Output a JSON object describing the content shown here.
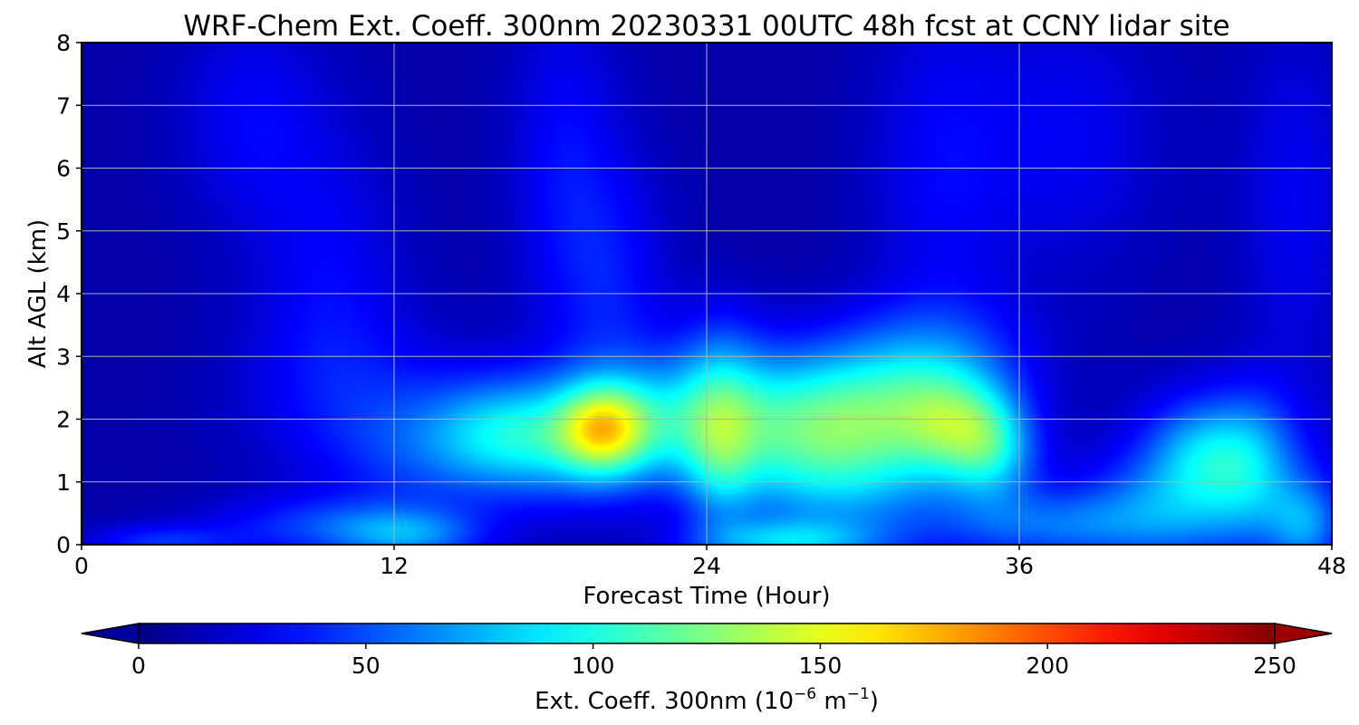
{
  "chart_data": {
    "type": "heatmap",
    "title": "WRF-Chem Ext. Coeff. 300nm  20230331 00UTC 48h fcst at CCNY lidar site",
    "xlabel": "Forecast Time (Hour)",
    "ylabel": "Alt AGL (km)",
    "xlim": [
      0,
      48
    ],
    "ylim": [
      0,
      8
    ],
    "x_ticks": [
      "0",
      "12",
      "24",
      "36",
      "48"
    ],
    "y_ticks": [
      "0",
      "1",
      "2",
      "3",
      "4",
      "5",
      "6",
      "7",
      "8"
    ],
    "grid": true,
    "colormap": "jet",
    "colorbar": {
      "orientation": "horizontal",
      "position": "bottom",
      "range": [
        0,
        250
      ],
      "extend": "both",
      "ticks": [
        "0",
        "50",
        "100",
        "150",
        "200",
        "250"
      ],
      "label_main": "Ext. Coeff. 300nm  (10",
      "label_exp1": "−6",
      "label_mid": " m",
      "label_exp2": "−1",
      "label_end": ")"
    },
    "background_value": 10,
    "features": [
      {
        "x": 20.0,
        "y": 1.85,
        "sx": 1.2,
        "sy": 0.5,
        "v": 85
      },
      {
        "x": 18.5,
        "y": 1.7,
        "sx": 2.5,
        "sy": 0.7,
        "v": 55
      },
      {
        "x": 16.0,
        "y": 1.8,
        "sx": 2.0,
        "sy": 0.6,
        "v": 40
      },
      {
        "x": 22.5,
        "y": 2.0,
        "sx": 2.0,
        "sy": 0.7,
        "v": 45
      },
      {
        "x": 26.5,
        "y": 2.0,
        "sx": 2.5,
        "sy": 0.8,
        "v": 60
      },
      {
        "x": 30.5,
        "y": 2.1,
        "sx": 2.5,
        "sy": 0.8,
        "v": 70
      },
      {
        "x": 33.5,
        "y": 1.9,
        "sx": 1.5,
        "sy": 0.6,
        "v": 60
      },
      {
        "x": 35.0,
        "y": 1.5,
        "sx": 1.2,
        "sy": 0.6,
        "v": 55
      },
      {
        "x": 29.0,
        "y": 1.0,
        "sx": 3.0,
        "sy": 0.8,
        "v": 45
      },
      {
        "x": 24.5,
        "y": 1.3,
        "sx": 1.0,
        "sy": 0.8,
        "v": 40
      },
      {
        "x": 33.0,
        "y": 3.0,
        "sx": 2.5,
        "sy": 0.7,
        "v": 30
      },
      {
        "x": 24.5,
        "y": 2.8,
        "sx": 1.2,
        "sy": 0.8,
        "v": 28
      },
      {
        "x": 27.0,
        "y": 0.05,
        "sx": 2.5,
        "sy": 0.25,
        "v": 55
      },
      {
        "x": 37.0,
        "y": 0.3,
        "sx": 3.0,
        "sy": 0.4,
        "v": 40
      },
      {
        "x": 41.5,
        "y": 0.6,
        "sx": 2.5,
        "sy": 0.6,
        "v": 35
      },
      {
        "x": 43.0,
        "y": 1.5,
        "sx": 1.5,
        "sy": 0.6,
        "v": 45
      },
      {
        "x": 45.0,
        "y": 1.3,
        "sx": 1.2,
        "sy": 0.8,
        "v": 35
      },
      {
        "x": 47.0,
        "y": 0.3,
        "sx": 1.0,
        "sy": 0.5,
        "v": 45
      },
      {
        "x": 12.5,
        "y": 0.15,
        "sx": 2.0,
        "sy": 0.3,
        "v": 45
      },
      {
        "x": 9.0,
        "y": 0.3,
        "sx": 3.0,
        "sy": 0.35,
        "v": 30
      },
      {
        "x": 3.0,
        "y": 0.05,
        "sx": 2.0,
        "sy": 0.2,
        "v": 30
      },
      {
        "x": 13.0,
        "y": 1.5,
        "sx": 2.5,
        "sy": 0.8,
        "v": 28
      },
      {
        "x": 18.5,
        "y": 6.0,
        "sx": 1.5,
        "sy": 2.0,
        "v": 22
      },
      {
        "x": 20.5,
        "y": 4.0,
        "sx": 1.5,
        "sy": 1.5,
        "v": 22
      },
      {
        "x": 9.5,
        "y": 4.5,
        "sx": 2.0,
        "sy": 1.5,
        "v": 18
      },
      {
        "x": 6.5,
        "y": 6.8,
        "sx": 2.0,
        "sy": 1.2,
        "v": 20
      },
      {
        "x": 33.0,
        "y": 6.0,
        "sx": 2.0,
        "sy": 2.0,
        "v": 20
      },
      {
        "x": 38.0,
        "y": 6.5,
        "sx": 2.5,
        "sy": 1.5,
        "v": 18
      },
      {
        "x": 46.5,
        "y": 5.5,
        "sx": 1.5,
        "sy": 2.0,
        "v": 18
      },
      {
        "x": 44.0,
        "y": 1.0,
        "sx": 3.0,
        "sy": 1.0,
        "v": 25
      },
      {
        "x": 10.0,
        "y": 2.5,
        "sx": 3.0,
        "sy": 1.0,
        "v": 18
      }
    ]
  }
}
